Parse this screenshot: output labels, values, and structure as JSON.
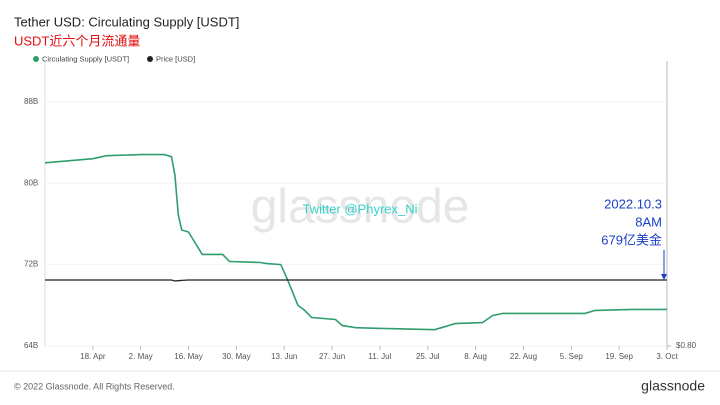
{
  "chart_data": {
    "type": "line",
    "title": "Tether USD: Circulating Supply [USDT]",
    "subtitle": "USDT近六个月流通量",
    "x": [
      "4. Apr",
      "18. Apr",
      "22. Apr",
      "2. May",
      "9. May",
      "11. May",
      "12. May",
      "13. May",
      "14. May",
      "16. May",
      "20. May",
      "26. May",
      "28. May",
      "6. Jun",
      "8. Jun",
      "12. Jun",
      "14. Jun",
      "17. Jun",
      "19. Jun",
      "21. Jun",
      "28. Jun",
      "30. Jun",
      "4. Jul",
      "15. Jul",
      "27. Jul",
      "30. Jul",
      "2. Aug",
      "10. Aug",
      "13. Aug",
      "16. Aug",
      "9. Sep",
      "12. Sep",
      "23. Sep",
      "3. Oct"
    ],
    "series": [
      {
        "name": "Circulating Supply [USDT]",
        "color": "#2f9e6e",
        "values": [
          82.0,
          82.4,
          82.7,
          82.8,
          82.8,
          82.6,
          80.8,
          76.9,
          75.4,
          75.2,
          73.0,
          73.0,
          72.3,
          72.2,
          72.1,
          72.0,
          70.5,
          68.0,
          67.5,
          66.8,
          66.6,
          66.0,
          65.8,
          65.7,
          65.6,
          65.9,
          66.2,
          66.3,
          67.0,
          67.2,
          67.2,
          67.5,
          67.6,
          67.6
        ]
      },
      {
        "name": "Price [USD]",
        "color": "#222222",
        "axis": "y2",
        "values": [
          1.0,
          1.0,
          1.0,
          1.0,
          1.0,
          1.0,
          0.997,
          0.998,
          0.999,
          1.0,
          1.0,
          1.0,
          1.0,
          1.0,
          1.0,
          1.0,
          1.0,
          1.0,
          1.0,
          1.0,
          1.0,
          1.0,
          1.0,
          1.0,
          1.0,
          1.0,
          1.0,
          1.0,
          1.0,
          1.0,
          1.0,
          1.0,
          1.0,
          1.0
        ]
      }
    ],
    "xlim": [
      "4. Apr",
      "3. Oct"
    ],
    "xticks": [
      "18. Apr",
      "2. May",
      "16. May",
      "30. May",
      "13. Jun",
      "27. Jun",
      "11. Jul",
      "25. Jul",
      "8. Aug",
      "22. Aug",
      "5. Sep",
      "19. Sep",
      "3. Oct"
    ],
    "ylim": [
      64,
      92
    ],
    "yticks": [
      {
        "value": 64,
        "label": "64B"
      },
      {
        "value": 72,
        "label": "72B"
      },
      {
        "value": 80,
        "label": "80B"
      },
      {
        "value": 88,
        "label": "88B"
      }
    ],
    "y2lim": [
      0.8,
      1.664
    ],
    "y2ticks": [
      {
        "value": 0.8,
        "label": "$0.80"
      }
    ],
    "annotation": [
      "2022.10.3",
      "8AM",
      "679亿美金"
    ],
    "watermark": "glassnode",
    "credit": "Twitter @Phyrex_Ni",
    "footer": "© 2022 Glassnode. All Rights Reserved.",
    "logo": "glassnode"
  }
}
